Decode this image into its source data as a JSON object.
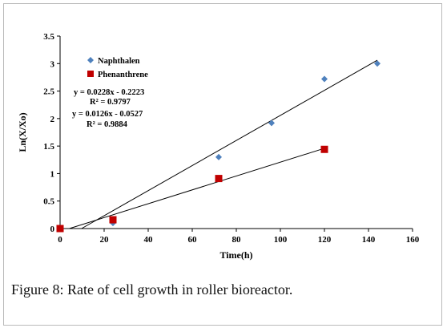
{
  "chart_data": {
    "type": "scatter",
    "xlabel": "Time(h)",
    "ylabel": "Ln(X/Xo)",
    "xlim": [
      0,
      160
    ],
    "ylim": [
      0,
      3.5
    ],
    "x_ticks": [
      "0",
      "20",
      "40",
      "60",
      "80",
      "100",
      "120",
      "140",
      "160"
    ],
    "y_ticks": [
      "0",
      "0.5",
      "1",
      "1.5",
      "2",
      "2.5",
      "3",
      "3.5"
    ],
    "grid": false,
    "legend_position": "top-left",
    "series": [
      {
        "name": "Naphthalen",
        "marker": "diamond",
        "color": "#4f81bd",
        "x": [
          0,
          24,
          72,
          96,
          120,
          144
        ],
        "y": [
          0,
          0.1,
          1.3,
          1.92,
          2.72,
          3.0
        ],
        "trendline": {
          "slope": 0.0228,
          "intercept": -0.2223,
          "x_range": [
            9.75,
            144
          ]
        }
      },
      {
        "name": "Phenanthrene",
        "marker": "square",
        "color": "#c00000",
        "x": [
          0,
          24,
          72,
          120
        ],
        "y": [
          0,
          0.16,
          0.91,
          1.44
        ],
        "trendline": {
          "slope": 0.0126,
          "intercept": -0.0527,
          "x_range": [
            4.2,
            120
          ]
        }
      }
    ],
    "annotations": [
      {
        "text": "y = 0.0228x - 0.2223"
      },
      {
        "text": "R² = 0.9797"
      },
      {
        "text": "y = 0.0126x - 0.0527"
      },
      {
        "text": "R² = 0.9884"
      }
    ]
  },
  "caption": {
    "label": "Figure 8:",
    "text": " Rate of cell growth in roller bioreactor."
  }
}
